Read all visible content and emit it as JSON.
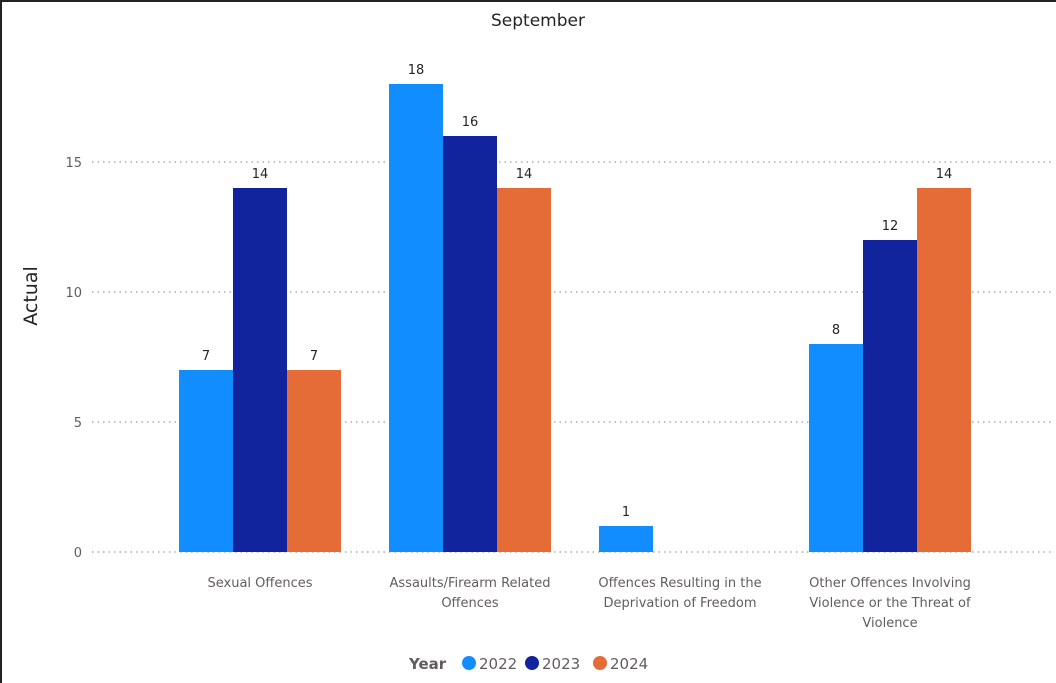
{
  "chart_data": {
    "type": "bar",
    "title": "September",
    "ylabel": "Actual",
    "xlabel": "",
    "ylim": [
      0,
      18
    ],
    "yticks": [
      0,
      5,
      10,
      15
    ],
    "grid": true,
    "legend_position": "bottom",
    "legend_title": "Year",
    "categories": [
      [
        "Sexual Offences"
      ],
      [
        "Assaults/Firearm Related",
        "Offences"
      ],
      [
        "Offences Resulting in the",
        "Deprivation of Freedom"
      ],
      [
        "Other Offences Involving",
        "Violence or the Threat of",
        "Violence"
      ]
    ],
    "series": [
      {
        "name": "2022",
        "color": "#118DFF",
        "values": [
          7,
          18,
          1,
          8
        ]
      },
      {
        "name": "2023",
        "color": "#12239E",
        "values": [
          14,
          16,
          null,
          12
        ]
      },
      {
        "name": "2024",
        "color": "#E66C37",
        "values": [
          7,
          14,
          null,
          14
        ]
      }
    ]
  }
}
